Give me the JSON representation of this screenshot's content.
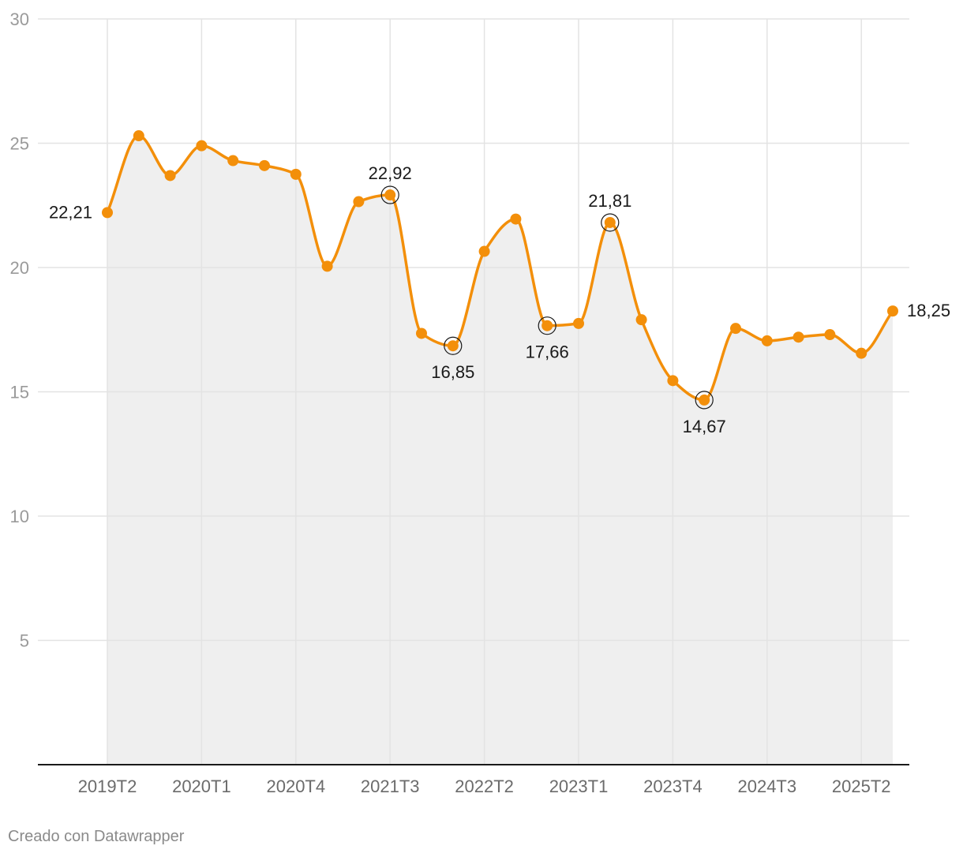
{
  "chart_data": {
    "type": "line",
    "fill_area": true,
    "grid": true,
    "colors": {
      "line": "#f38f0a",
      "area": "#efefef",
      "grid": "#e3e3e3",
      "axis": "#1a1a1a",
      "highlight_ring": "#1a1a1a"
    },
    "y_ticks": [
      5,
      10,
      15,
      20,
      25,
      30
    ],
    "y_tick_labels": [
      "5",
      "10",
      "15",
      "20",
      "25",
      "30"
    ],
    "ylim": [
      0,
      30
    ],
    "x_tick_labels": [
      "2019T2",
      "2020T1",
      "2020T4",
      "2021T3",
      "2022T2",
      "2023T1",
      "2023T4",
      "2024T3",
      "2025T2"
    ],
    "categories": [
      "2019T2",
      "2019T3",
      "2019T4",
      "2020T1",
      "2020T2",
      "2020T3",
      "2020T4",
      "2021T1",
      "2021T2",
      "2021T3",
      "2021T4",
      "2022T1",
      "2022T2",
      "2022T3",
      "2022T4",
      "2023T1",
      "2023T2",
      "2023T3",
      "2023T4",
      "2024T1",
      "2024T2",
      "2024T3",
      "2024T4",
      "2025T1",
      "2025T2",
      "2025T3"
    ],
    "values": [
      22.21,
      25.3,
      23.7,
      24.9,
      24.3,
      24.1,
      23.75,
      20.05,
      22.65,
      22.92,
      17.35,
      16.85,
      20.65,
      21.95,
      17.66,
      17.75,
      21.81,
      17.9,
      15.45,
      14.67,
      17.55,
      17.05,
      17.2,
      17.3,
      16.55,
      18.25
    ],
    "point_labels": [
      {
        "index": 0,
        "text": "22,21",
        "position": "left",
        "ring": false
      },
      {
        "index": 9,
        "text": "22,92",
        "position": "above",
        "ring": true
      },
      {
        "index": 11,
        "text": "16,85",
        "position": "below",
        "ring": true
      },
      {
        "index": 14,
        "text": "17,66",
        "position": "below",
        "ring": true
      },
      {
        "index": 16,
        "text": "21,81",
        "position": "above",
        "ring": true
      },
      {
        "index": 19,
        "text": "14,67",
        "position": "below",
        "ring": true
      },
      {
        "index": 25,
        "text": "18,25",
        "position": "right",
        "ring": false
      }
    ]
  },
  "footer": {
    "credit": "Creado con Datawrapper"
  }
}
